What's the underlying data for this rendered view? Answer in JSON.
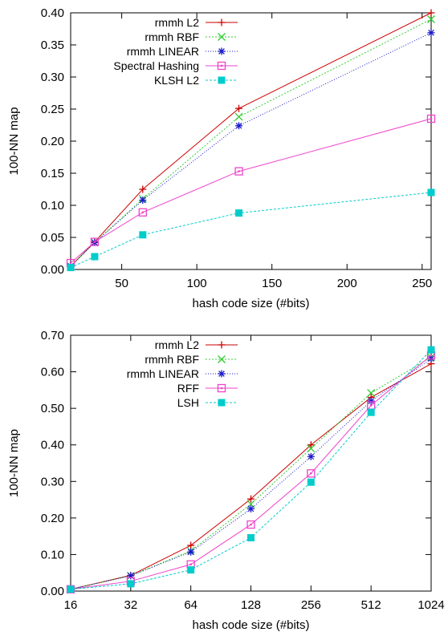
{
  "chart_data": [
    {
      "type": "line",
      "title": "",
      "xlabel": "hash code size (#bits)",
      "ylabel": "100-NN map",
      "xlim": [
        16,
        256
      ],
      "ylim": [
        0,
        0.4
      ],
      "x_scale": "linear",
      "x": [
        16,
        32,
        64,
        128,
        256
      ],
      "xticks": [
        50,
        100,
        150,
        200,
        250
      ],
      "xtick_labels": [
        "50",
        "100",
        "150",
        "200",
        "250"
      ],
      "yticks": [
        0,
        0.05,
        0.1,
        0.15,
        0.2,
        0.25,
        0.3,
        0.35,
        0.4
      ],
      "ytick_labels": [
        "0.00",
        "0.05",
        "0.10",
        "0.15",
        "0.20",
        "0.25",
        "0.30",
        "0.35",
        "0.40"
      ],
      "grid": false,
      "legend_position": "top-left",
      "series": [
        {
          "name": "rmmh L2",
          "color": "#cc0000",
          "marker": "plus",
          "dash": "",
          "values": [
            0.005,
            0.043,
            0.125,
            0.251,
            0.4
          ]
        },
        {
          "name": "rmmh RBF",
          "color": "#33cc33",
          "marker": "x",
          "dash": "2,2",
          "values": [
            0.005,
            0.042,
            0.11,
            0.238,
            0.39
          ]
        },
        {
          "name": "rmmh LINEAR",
          "color": "#1a1acc",
          "marker": "asterisk",
          "dash": "1,2",
          "values": [
            0.005,
            0.042,
            0.108,
            0.224,
            0.369
          ]
        },
        {
          "name": "Spectral Hashing",
          "color": "#ee44cc",
          "marker": "square-open",
          "dash": "",
          "values": [
            0.01,
            0.043,
            0.089,
            0.153,
            0.235
          ]
        },
        {
          "name": "KLSH L2",
          "color": "#00cccc",
          "marker": "square-filled",
          "dash": "3,2",
          "values": [
            0.003,
            0.02,
            0.054,
            0.088,
            0.12
          ]
        }
      ]
    },
    {
      "type": "line",
      "title": "",
      "xlabel": "hash code size (#bits)",
      "ylabel": "100-NN map",
      "xlim": [
        16,
        1024
      ],
      "ylim": [
        0,
        0.7
      ],
      "x_scale": "log2",
      "x": [
        16,
        32,
        64,
        128,
        256,
        512,
        1024
      ],
      "xticks": [
        16,
        32,
        64,
        128,
        256,
        512,
        1024
      ],
      "xtick_labels": [
        "16",
        "32",
        "64",
        "128",
        "256",
        "512",
        "1024"
      ],
      "yticks": [
        0,
        0.1,
        0.2,
        0.3,
        0.4,
        0.5,
        0.6,
        0.7
      ],
      "ytick_labels": [
        "0.00",
        "0.10",
        "0.20",
        "0.30",
        "0.40",
        "0.50",
        "0.60",
        "0.70"
      ],
      "grid": false,
      "legend_position": "top-left",
      "series": [
        {
          "name": "rmmh L2",
          "color": "#cc0000",
          "marker": "plus",
          "dash": "",
          "values": [
            0.005,
            0.043,
            0.125,
            0.252,
            0.4,
            0.53,
            0.622
          ]
        },
        {
          "name": "rmmh RBF",
          "color": "#33cc33",
          "marker": "x",
          "dash": "2,2",
          "values": [
            0.005,
            0.042,
            0.11,
            0.238,
            0.39,
            0.542,
            0.64
          ]
        },
        {
          "name": "rmmh LINEAR",
          "color": "#1a1acc",
          "marker": "asterisk",
          "dash": "1,2",
          "values": [
            0.005,
            0.042,
            0.107,
            0.225,
            0.368,
            0.52,
            0.636
          ]
        },
        {
          "name": "RFF",
          "color": "#ee44cc",
          "marker": "square-open",
          "dash": "",
          "values": [
            0.005,
            0.027,
            0.073,
            0.182,
            0.322,
            0.508,
            0.645
          ]
        },
        {
          "name": "LSH",
          "color": "#00cccc",
          "marker": "square-filled",
          "dash": "3,2",
          "values": [
            0.005,
            0.02,
            0.058,
            0.146,
            0.298,
            0.489,
            0.66
          ]
        }
      ]
    }
  ]
}
